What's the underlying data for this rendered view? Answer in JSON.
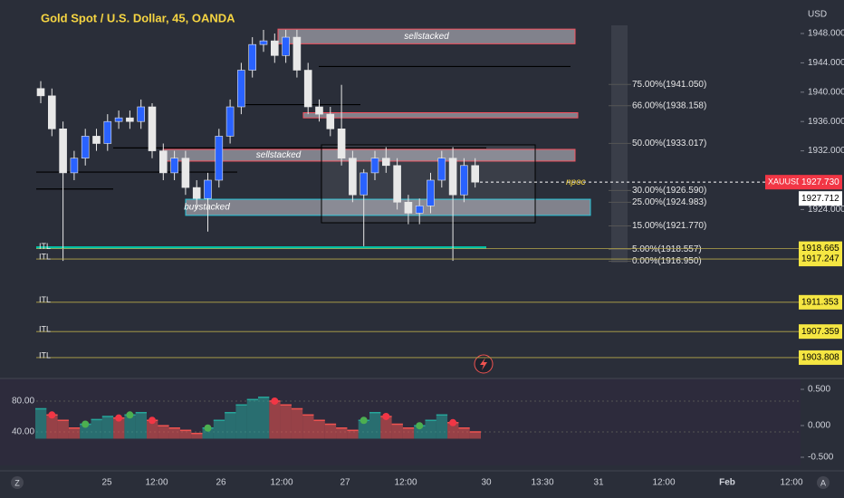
{
  "chart_data": {
    "type": "candlestick",
    "title": "Gold Spot / U.S. Dollar, 45, OANDA",
    "currency": "USD",
    "categories": [
      "25",
      "12:00",
      "26",
      "12:00",
      "27",
      "12:00",
      "30",
      "13:30",
      "31",
      "12:00",
      "Feb",
      "12:00"
    ],
    "open": [
      1940.5,
      1939.5,
      1935,
      1929,
      1931,
      1934,
      1933,
      1936,
      1936.5,
      1936,
      1938,
      1932,
      1929,
      1931,
      1927,
      1925.5,
      1928,
      1934,
      1938,
      1943,
      1946.5,
      1947,
      1945,
      1947.5,
      1943,
      1938,
      1937,
      1935,
      1931,
      1926,
      1929,
      1931,
      1930,
      1925,
      1923.5,
      1924.5,
      1928,
      1931,
      1926,
      1930
    ],
    "high": [
      1941.5,
      1940.5,
      1936,
      1932,
      1935,
      1935,
      1937,
      1937.5,
      1937.5,
      1939,
      1938.5,
      1933,
      1932,
      1932,
      1928,
      1929,
      1935,
      1939,
      1944,
      1947.5,
      1948.5,
      1948,
      1948.5,
      1948.5,
      1944,
      1939,
      1938,
      1941,
      1932,
      1929.5,
      1932,
      1932.5,
      1931,
      1926,
      1925.5,
      1929,
      1932,
      1932.5,
      1931,
      1931
    ],
    "low": [
      1938.5,
      1934,
      1917,
      1928,
      1930,
      1932,
      1932,
      1935,
      1935,
      1935,
      1931,
      1928,
      1928,
      1926,
      1924,
      1921,
      1927,
      1933,
      1937,
      1942,
      1945.5,
      1944,
      1944,
      1942,
      1937,
      1936,
      1934,
      1930,
      1925,
      1919,
      1928,
      1929,
      1924,
      1922,
      1922,
      1923.5,
      1927,
      1917,
      1925,
      1927
    ],
    "close": [
      1939.5,
      1935,
      1929,
      1931,
      1934,
      1933,
      1936,
      1936.5,
      1936,
      1938,
      1932,
      1929,
      1931,
      1927,
      1925.5,
      1928,
      1934,
      1938,
      1943,
      1946.5,
      1947,
      1945,
      1947.5,
      1943,
      1938,
      1937,
      1935,
      1931,
      1926,
      1929,
      1931,
      1930,
      1925,
      1923.5,
      1924.5,
      1928,
      1931,
      1926,
      1930,
      1927.73
    ],
    "up_color": "#2962ff",
    "down_color": "#e8e8e8",
    "ylim": [
      1901.33,
      1952.57
    ],
    "yticks": [
      {
        "value": 1948,
        "label": "1948.000"
      },
      {
        "value": 1944,
        "label": "1944.000"
      },
      {
        "value": 1940,
        "label": "1940.000"
      },
      {
        "value": 1936,
        "label": "1936.000"
      },
      {
        "value": 1932,
        "label": "1932.000"
      },
      {
        "value": 1924,
        "label": "1924.000"
      }
    ],
    "zones": [
      {
        "label": "sellstacked",
        "high": 1948.6,
        "low": 1946.6
      },
      {
        "label": "",
        "high": 1937.2,
        "low": 1936.5
      },
      {
        "label": "sellstacked",
        "high": 1932.2,
        "low": 1930.6
      },
      {
        "label": "buystacked",
        "high": 1925.4,
        "low": 1923.2
      }
    ],
    "levels": [
      1943.5,
      1938.3,
      1932.4,
      1929.1,
      1926.8,
      1918.8
    ],
    "fib": [
      {
        "label": "75.00%(1941.050)",
        "price": 1941.05
      },
      {
        "label": "66.00%(1938.158)",
        "price": 1938.158
      },
      {
        "label": "50.00%(1933.017)",
        "price": 1933.017
      },
      {
        "label": "30.00%(1926.590)",
        "price": 1926.59
      },
      {
        "label": "25.00%(1924.983)",
        "price": 1924.983
      },
      {
        "label": "15.00%(1921.770)",
        "price": 1921.77
      },
      {
        "label": "5.00%(1918.557)",
        "price": 1918.557
      },
      {
        "label": "0.00%(1916.950)",
        "price": 1916.95
      }
    ],
    "npoc": {
      "label": "npoc",
      "price": 1927.73
    },
    "symbol": "XAUUSD",
    "last_price": {
      "value": 1927.73,
      "label": "1927.730"
    },
    "bid_price": {
      "value": 1927.712,
      "label": "1927.712"
    },
    "itl": [
      {
        "label": "ITL",
        "price": 1918.665,
        "price_label": "1918.665"
      },
      {
        "label": "ITL",
        "price": 1917.247,
        "price_label": "1917.247"
      },
      {
        "label": "ITL",
        "price": 1911.353,
        "price_label": "1911.353"
      },
      {
        "label": "ITL",
        "price": 1907.359,
        "price_label": "1907.359"
      },
      {
        "label": "ITL",
        "price": 1903.808,
        "price_label": "1903.808"
      }
    ],
    "oscillator": {
      "values": [
        70,
        62,
        55,
        45,
        50,
        56,
        60,
        58,
        62,
        65,
        55,
        48,
        45,
        42,
        38,
        45,
        55,
        65,
        75,
        82,
        85,
        80,
        75,
        70,
        62,
        55,
        50,
        45,
        42,
        55,
        65,
        60,
        50,
        45,
        48,
        55,
        62,
        52,
        45,
        40
      ],
      "ylim": [
        1.2,
        107
      ],
      "yticks": [
        {
          "value": 80,
          "label": "80.00"
        },
        {
          "value": 40,
          "label": "40.00"
        }
      ],
      "y2lim": [
        -0.5,
        0.625
      ],
      "y2ticks": [
        {
          "value": 0.5,
          "label": "0.500"
        },
        {
          "value": 0,
          "label": "0.000"
        },
        {
          "value": -0.5,
          "label": "-0.500"
        }
      ],
      "up_color": "#26a69a",
      "down_color": "#ef5350"
    }
  }
}
